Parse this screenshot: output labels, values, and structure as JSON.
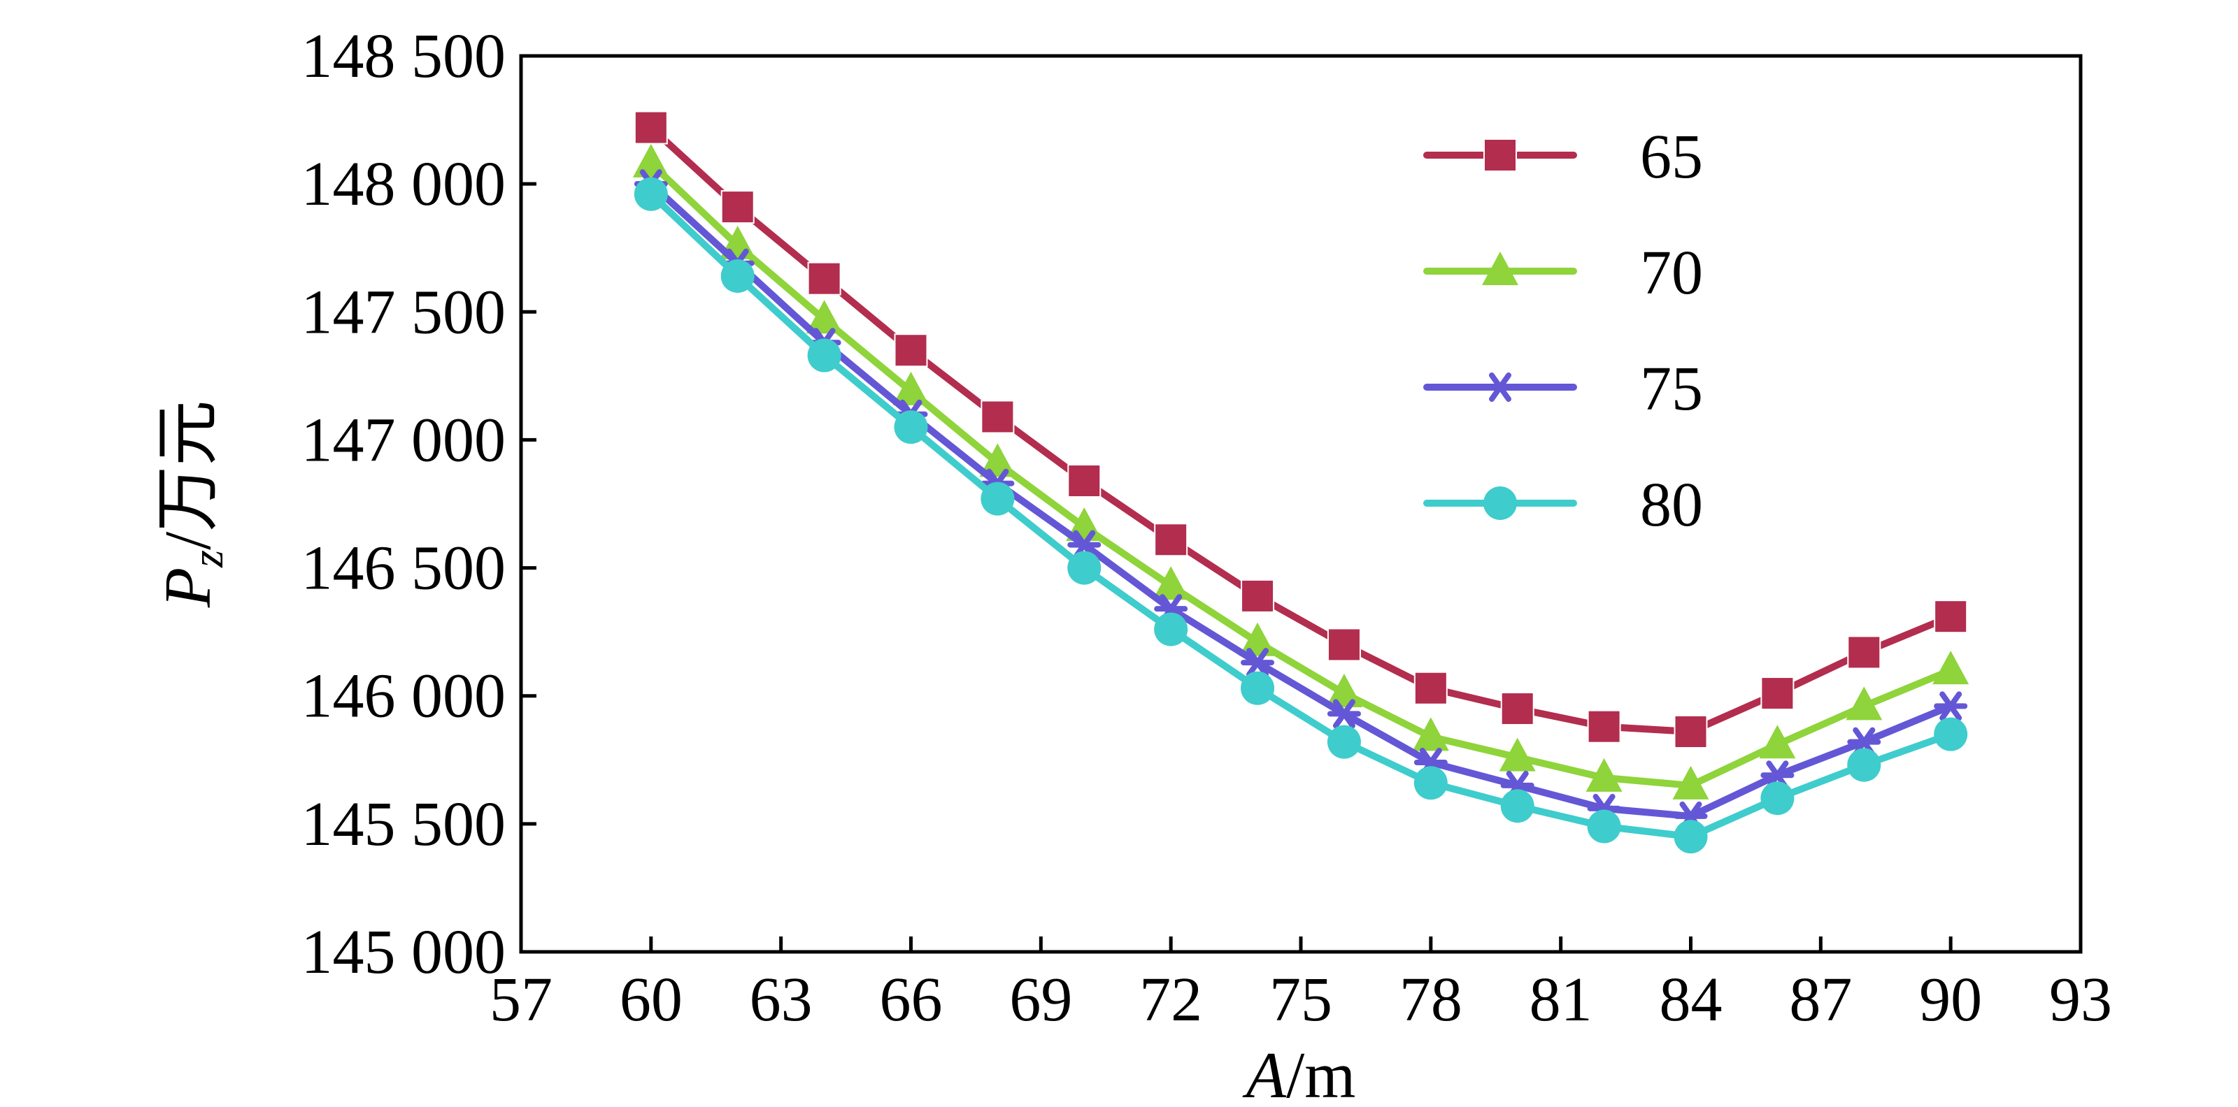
{
  "chart_data": {
    "type": "line",
    "title": "",
    "xlabel": {
      "var": "A",
      "unit": "/m"
    },
    "ylabel": {
      "var": "P",
      "sub": "z",
      "unit": "/万元"
    },
    "xlim": [
      57,
      93
    ],
    "ylim": [
      145000,
      148500
    ],
    "x_ticks": [
      57,
      60,
      63,
      66,
      69,
      72,
      75,
      78,
      81,
      84,
      87,
      90,
      93
    ],
    "y_ticks": [
      145000,
      145500,
      146000,
      146500,
      147000,
      147500,
      148000,
      148500
    ],
    "y_tick_labels": [
      "145 000",
      "145 500",
      "146 000",
      "146 500",
      "147 000",
      "147 500",
      "148 000",
      "148 500"
    ],
    "grid": false,
    "legend_position": "top-right",
    "x": [
      60,
      62,
      64,
      66,
      68,
      70,
      72,
      74,
      76,
      78,
      80,
      82,
      84,
      86,
      88,
      90
    ],
    "series": [
      {
        "name": "65",
        "color": "#b22d4e",
        "marker": "square",
        "values": [
          148220,
          147910,
          147630,
          147350,
          147090,
          146840,
          146610,
          146390,
          146200,
          146030,
          145950,
          145880,
          145860,
          146010,
          146170,
          146310
        ]
      },
      {
        "name": "70",
        "color": "#8ed43a",
        "marker": "triangle",
        "values": [
          148080,
          147760,
          147470,
          147190,
          146910,
          146660,
          146430,
          146210,
          146010,
          145840,
          145760,
          145680,
          145650,
          145810,
          145960,
          146100
        ]
      },
      {
        "name": "75",
        "color": "#6457d6",
        "marker": "star",
        "values": [
          148000,
          147690,
          147380,
          147100,
          146830,
          146590,
          146340,
          146130,
          145930,
          145740,
          145650,
          145560,
          145530,
          145690,
          145820,
          145960
        ]
      },
      {
        "name": "80",
        "color": "#3fcccc",
        "marker": "circle",
        "values": [
          147960,
          147640,
          147330,
          147050,
          146770,
          146500,
          146260,
          146030,
          145820,
          145660,
          145570,
          145490,
          145450,
          145600,
          145730,
          145850
        ]
      }
    ]
  }
}
